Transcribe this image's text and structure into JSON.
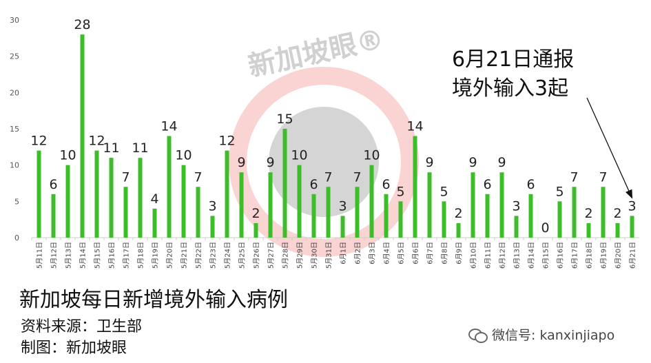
{
  "chart_data": {
    "type": "bar",
    "categories": [
      "5月11日",
      "5月12日",
      "5月13日",
      "5月14日",
      "5月15日",
      "5月16日",
      "5月17日",
      "5月18日",
      "5月19日",
      "5月20日",
      "5月21日",
      "5月22日",
      "5月23日",
      "5月24日",
      "5月25日",
      "5月26日",
      "5月27日",
      "5月28日",
      "5月29日",
      "5月30日",
      "5月31日",
      "6月1日",
      "6月2日",
      "6月3日",
      "6月4日",
      "6月5日",
      "6月6日",
      "6月7日",
      "6月8日",
      "6月9日",
      "6月10日",
      "6月11日",
      "6月12日",
      "6月13日",
      "6月14日",
      "6月15日",
      "6月16日",
      "6月17日",
      "6月18日",
      "6月19日",
      "6月20日",
      "6月21日"
    ],
    "values": [
      12,
      6,
      10,
      28,
      12,
      11,
      7,
      11,
      4,
      14,
      10,
      7,
      3,
      12,
      9,
      2,
      9,
      15,
      10,
      6,
      7,
      3,
      7,
      10,
      6,
      5,
      14,
      9,
      5,
      2,
      9,
      6,
      9,
      3,
      6,
      0,
      5,
      7,
      2,
      7,
      2,
      3
    ],
    "ylim": [
      0,
      30
    ],
    "yticks": [
      0,
      5,
      10,
      15,
      20,
      25,
      30
    ],
    "bar_color": "#3dbd2a",
    "title": "新加坡每日新增境外输入病例",
    "grid": false
  },
  "annotation": {
    "line1": "6月21日通报",
    "line2": "境外输入3起"
  },
  "source": "资料来源：卫生部",
  "credit": "制图：新加坡眼",
  "watermark": "新加坡眼®",
  "wechat_label": "微信号: kanxinjiapo",
  "colors": {
    "bar": "#3dbd2a",
    "watermark_ring": "#f08080",
    "watermark_gray": "#888888"
  }
}
